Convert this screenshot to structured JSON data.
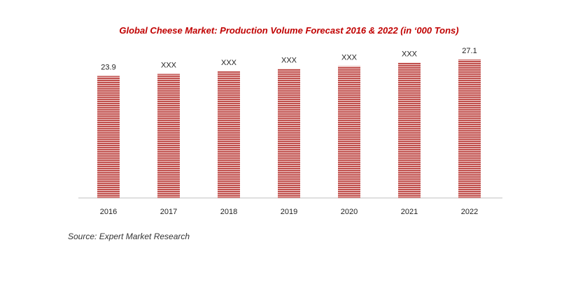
{
  "chart_data": {
    "type": "bar",
    "title": "Global Cheese Market: Production Volume Forecast 2016 & 2022 (in ‘000 Tons)",
    "categories": [
      "2016",
      "2017",
      "2018",
      "2019",
      "2020",
      "2021",
      "2022"
    ],
    "values": [
      23.9,
      24.3,
      24.8,
      25.3,
      25.8,
      26.5,
      27.1
    ],
    "data_labels": [
      "23.9",
      "XXX",
      "XXX",
      "XXX",
      "XXX",
      "XXX",
      "27.1"
    ],
    "ylim": [
      0,
      30
    ],
    "grid": false,
    "legend": "none",
    "bar_color": "#c0504d",
    "bar_stripe_color": "#ffffff"
  },
  "source": "Source: Expert Market Research"
}
